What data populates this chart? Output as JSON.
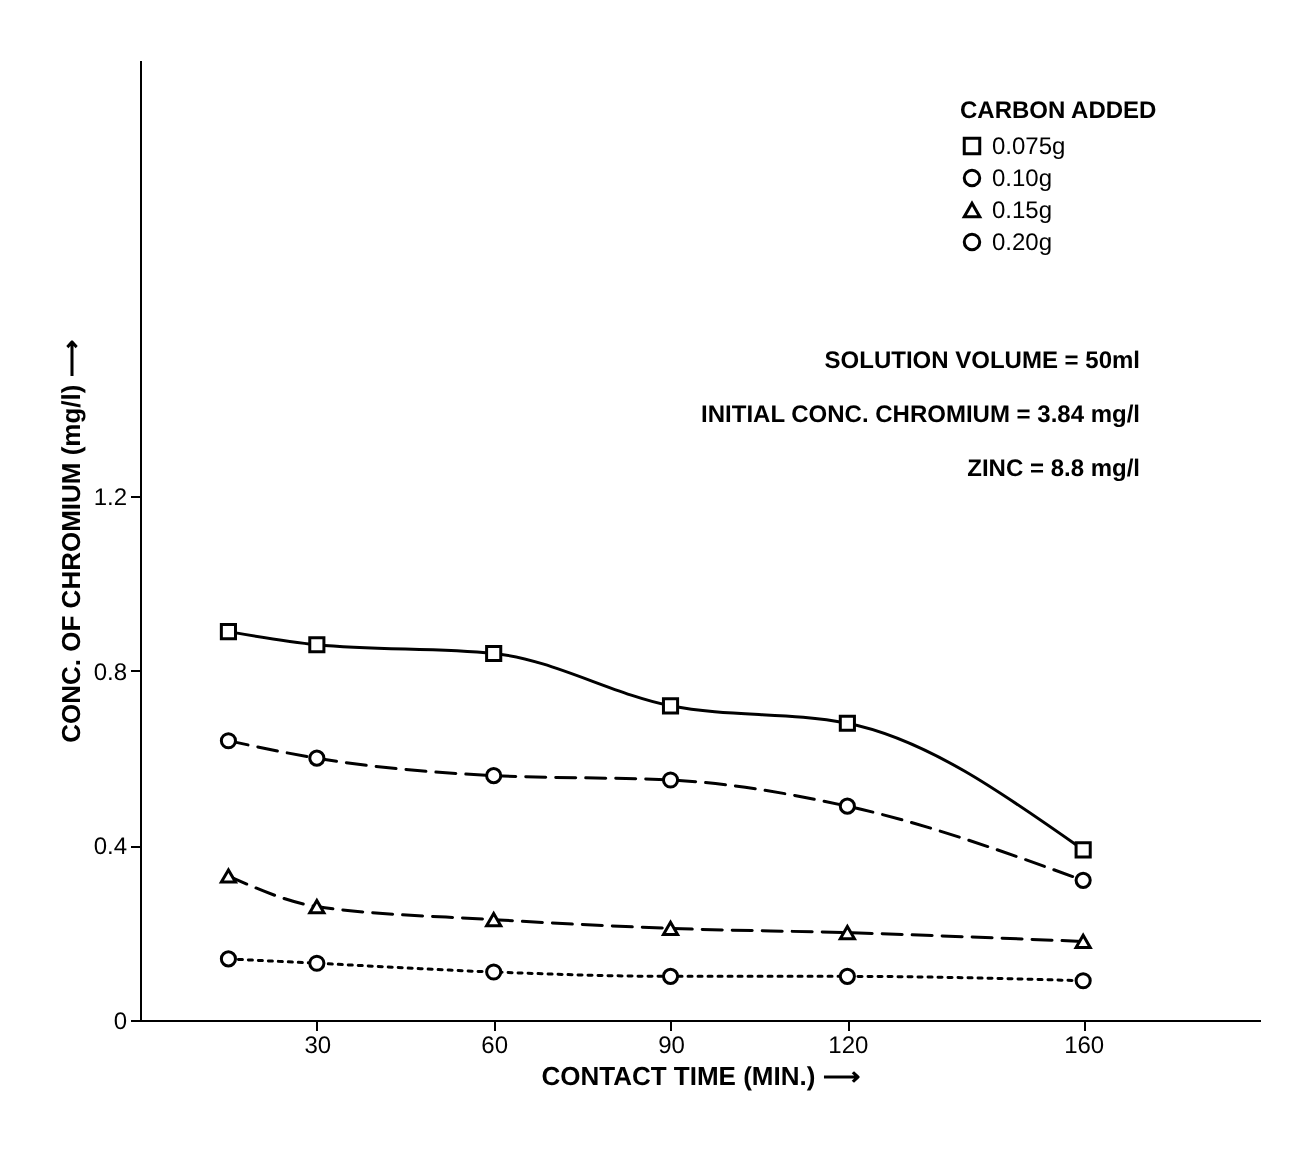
{
  "chart_data": {
    "type": "line",
    "xlabel": "CONTACT TIME (MIN.) ⟶",
    "ylabel": "CONC. OF CHROMIUM (mg/l) ⟶",
    "legend_title": "CARBON ADDED",
    "x": [
      15,
      30,
      60,
      90,
      120,
      160
    ],
    "series": [
      {
        "name": "0.075g",
        "color": "#000000",
        "marker": "square",
        "line_style": "solid",
        "values": [
          0.89,
          0.86,
          0.84,
          0.72,
          0.68,
          0.39
        ]
      },
      {
        "name": "0.10g",
        "color": "#000000",
        "marker": "circle",
        "line_style": "dashed",
        "values": [
          0.64,
          0.6,
          0.56,
          0.55,
          0.49,
          0.32
        ]
      },
      {
        "name": "0.15g",
        "color": "#000000",
        "marker": "triangle",
        "line_style": "dashed",
        "values": [
          0.33,
          0.26,
          0.23,
          0.21,
          0.2,
          0.18
        ]
      },
      {
        "name": "0.20g",
        "color": "#000000",
        "marker": "circle",
        "line_style": "dotted",
        "values": [
          0.14,
          0.13,
          0.11,
          0.1,
          0.1,
          0.09
        ]
      }
    ],
    "xlim": [
      0,
      190
    ],
    "xticks": [
      30,
      60,
      90,
      120,
      160
    ],
    "ylim": [
      0,
      2.2
    ],
    "yticks": [
      0,
      0.4,
      0.8,
      1.2
    ],
    "grid": false,
    "legend": "top right",
    "annotations": [
      "SOLUTION VOLUME = 50ml",
      "INITIAL CONC. CHROMIUM = 3.84 mg/l",
      "ZINC = 8.8 mg/l"
    ]
  }
}
